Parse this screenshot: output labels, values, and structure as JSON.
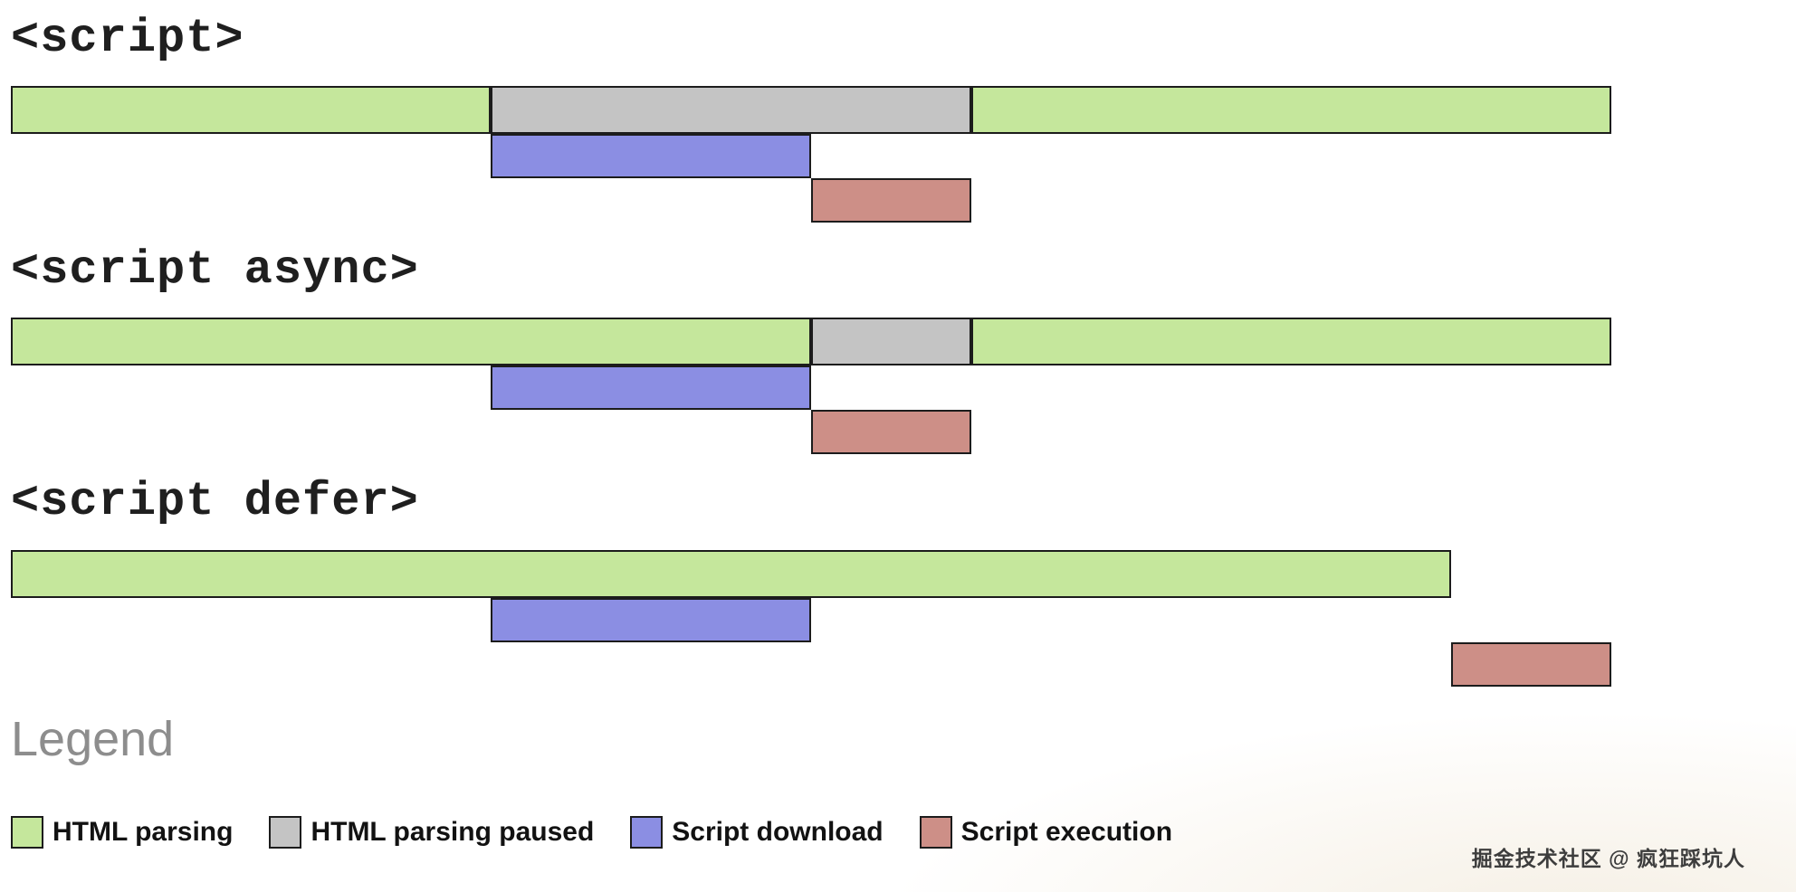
{
  "colors": {
    "html_parsing": "#c5e79c",
    "parsing_paused": "#c4c4c4",
    "script_download": "#8b8ee3",
    "script_execution": "#cd8f87",
    "bar_border": "#1c1c1c"
  },
  "timelines": [
    {
      "title": "<script>",
      "rows": [
        {
          "segments": [
            {
              "type": "html_parsing",
              "start": 0,
              "end": 30
            },
            {
              "type": "parsing_paused",
              "start": 30,
              "end": 60
            },
            {
              "type": "html_parsing",
              "start": 60,
              "end": 100
            }
          ]
        },
        {
          "segments": [
            {
              "type": "script_download",
              "start": 30,
              "end": 50
            }
          ]
        },
        {
          "segments": [
            {
              "type": "script_execution",
              "start": 50,
              "end": 60
            }
          ]
        }
      ]
    },
    {
      "title": "<script async>",
      "rows": [
        {
          "segments": [
            {
              "type": "html_parsing",
              "start": 0,
              "end": 50
            },
            {
              "type": "parsing_paused",
              "start": 50,
              "end": 60
            },
            {
              "type": "html_parsing",
              "start": 60,
              "end": 100
            }
          ]
        },
        {
          "segments": [
            {
              "type": "script_download",
              "start": 30,
              "end": 50
            }
          ]
        },
        {
          "segments": [
            {
              "type": "script_execution",
              "start": 50,
              "end": 60
            }
          ]
        }
      ]
    },
    {
      "title": "<script defer>",
      "rows": [
        {
          "segments": [
            {
              "type": "html_parsing",
              "start": 0,
              "end": 90
            }
          ]
        },
        {
          "segments": [
            {
              "type": "script_download",
              "start": 30,
              "end": 50
            }
          ]
        },
        {
          "segments": [
            {
              "type": "script_execution",
              "start": 90,
              "end": 100
            }
          ]
        }
      ]
    }
  ],
  "legend": {
    "title": "Legend",
    "items": [
      {
        "type": "html_parsing",
        "label": "HTML parsing"
      },
      {
        "type": "parsing_paused",
        "label": "HTML parsing paused"
      },
      {
        "type": "script_download",
        "label": "Script download"
      },
      {
        "type": "script_execution",
        "label": "Script execution"
      }
    ]
  },
  "watermark": "掘金技术社区 @ 疯狂踩坑人"
}
